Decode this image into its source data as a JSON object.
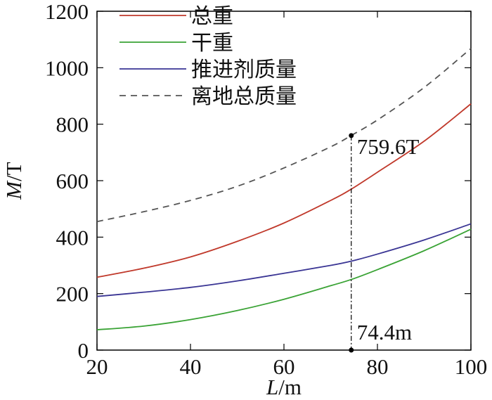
{
  "chart_data": {
    "type": "line",
    "title": "",
    "xlabel_italic": "L",
    "xlabel_unit": "/m",
    "ylabel_italic": "M",
    "ylabel_unit": "/T",
    "xlim": [
      20,
      100
    ],
    "ylim": [
      0,
      1200
    ],
    "xticks": [
      20,
      40,
      60,
      80,
      100
    ],
    "yticks": [
      0,
      200,
      400,
      600,
      800,
      1000,
      1200
    ],
    "grid": false,
    "legend_position": "top-left",
    "x": [
      20,
      30,
      40,
      50,
      60,
      70,
      74.4,
      80,
      90,
      100
    ],
    "series": [
      {
        "name": "总重",
        "color": "#c0392b",
        "dash": "solid",
        "values": [
          258,
          290,
          330,
          385,
          450,
          530,
          570,
          630,
          740,
          872
        ]
      },
      {
        "name": "干重",
        "color": "#3aa335",
        "dash": "solid",
        "values": [
          72,
          85,
          108,
          140,
          180,
          228,
          250,
          285,
          352,
          428
        ]
      },
      {
        "name": "推进剂质量",
        "color": "#3a3594",
        "dash": "solid",
        "values": [
          190,
          205,
          222,
          245,
          272,
          300,
          315,
          340,
          390,
          447
        ]
      },
      {
        "name": "离地总质量",
        "color": "#555555",
        "dash": "dashed",
        "values": [
          455,
          490,
          530,
          580,
          645,
          720,
          760,
          815,
          930,
          1068
        ]
      }
    ],
    "annotations": {
      "point_x": 74.4,
      "point_y": 759.6,
      "value_label": "759.6T",
      "x_label": "74.4m"
    }
  }
}
